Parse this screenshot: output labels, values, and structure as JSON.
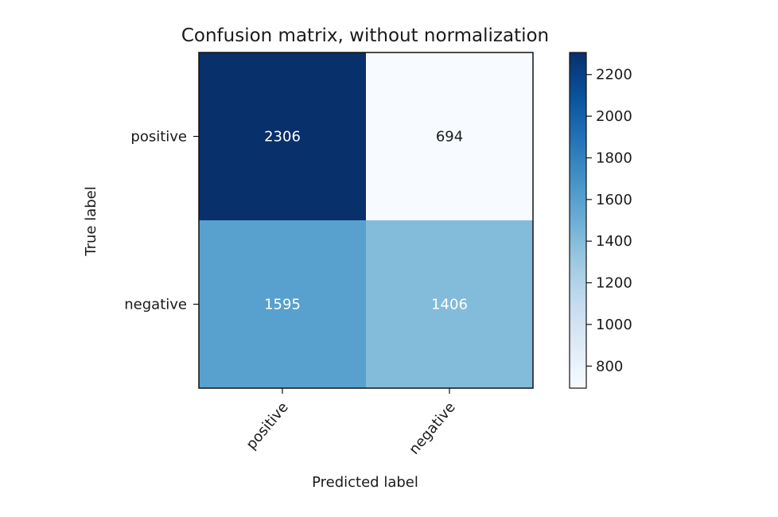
{
  "chart_data": {
    "type": "heatmap",
    "title": "Confusion matrix, without normalization",
    "xlabel": "Predicted label",
    "ylabel": "True label",
    "x_categories": [
      "positive",
      "negative"
    ],
    "y_categories": [
      "positive",
      "negative"
    ],
    "values": [
      [
        2306,
        694
      ],
      [
        1595,
        1406
      ]
    ],
    "colormap": "Blues",
    "colorbar": {
      "range": [
        694,
        2306
      ],
      "ticks": [
        800,
        1000,
        1200,
        1400,
        1600,
        1800,
        2000,
        2200
      ]
    },
    "grid": false
  }
}
